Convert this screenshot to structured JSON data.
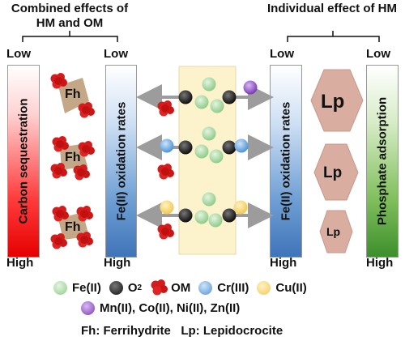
{
  "headers": {
    "left": "Combined effects of HM and OM",
    "right": "Individual effect of HM"
  },
  "bars": {
    "carbon": {
      "label": "Carbon sequestration",
      "low": "Low",
      "high": "High"
    },
    "fe_left": {
      "label": "Fe(II) oxidation rates",
      "low": "Low",
      "high": "High"
    },
    "fe_right": {
      "label": "Fe(II) oxidation rates",
      "low": "Low",
      "high": "High"
    },
    "phosphate": {
      "label": "Phosphate adsorption",
      "low": "Low",
      "high": "High"
    }
  },
  "fh_label": "Fh",
  "lp_label": "Lp",
  "legend": {
    "fe2": "Fe(II)",
    "o2": "O",
    "o2_sub": "2",
    "om": "OM",
    "cr3": "Cr(III)",
    "cu2": "Cu(II)",
    "metals": "Mn(II), Co(II), Ni(II), Zn(II)",
    "abbrev": "Fh: Ferrihydrite   Lp: Lepidocrocite"
  },
  "colors": {
    "fe2": "#9fd39a",
    "o2": "#1a1a1a",
    "om": "#d41c1c",
    "cr3": "#5aa0de",
    "cu2": "#f6d36a",
    "metals": "#8e4ec6",
    "fh": "#c3a786",
    "lp": "#d9ad9f",
    "center_panel": "#fcf2cc",
    "arrow": "#9c9c9c"
  }
}
